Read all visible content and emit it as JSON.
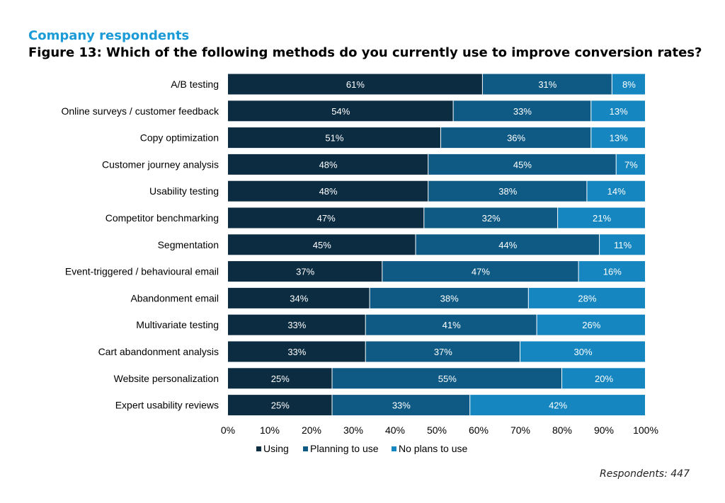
{
  "header": {
    "subheading": "Company respondents",
    "title": "Figure 13: Which of the following methods do you currently use to improve conversion rates?"
  },
  "footnote": "Respondents: 447",
  "chart_data": {
    "type": "bar",
    "orientation": "horizontal",
    "stacked": true,
    "categories": [
      "A/B testing",
      "Online surveys / customer feedback",
      "Copy optimization",
      "Customer journey analysis",
      "Usability testing",
      "Competitor benchmarking",
      "Segmentation",
      "Event-triggered / behavioural email",
      "Abandonment email",
      "Multivariate testing",
      "Cart abandonment analysis",
      "Website personalization",
      "Expert usability reviews"
    ],
    "series": [
      {
        "name": "Using",
        "color": "#0c2c42",
        "values": [
          61,
          54,
          51,
          48,
          48,
          47,
          45,
          37,
          34,
          33,
          33,
          25,
          25
        ]
      },
      {
        "name": "Planning to use",
        "color": "#0e5a85",
        "values": [
          31,
          33,
          36,
          45,
          38,
          32,
          44,
          47,
          38,
          41,
          37,
          55,
          33
        ]
      },
      {
        "name": "No plans to use",
        "color": "#1586c0",
        "values": [
          8,
          13,
          13,
          7,
          14,
          21,
          11,
          16,
          28,
          26,
          30,
          20,
          42
        ]
      }
    ],
    "value_suffix": "%",
    "xlim": [
      0,
      100
    ],
    "xticks": [
      "0%",
      "10%",
      "20%",
      "30%",
      "40%",
      "50%",
      "60%",
      "70%",
      "80%",
      "90%",
      "100%"
    ],
    "grid": false,
    "legend_position": "bottom"
  }
}
